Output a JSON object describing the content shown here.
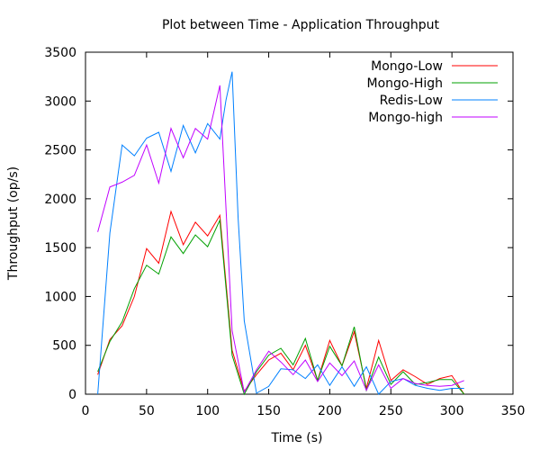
{
  "chart_data": {
    "type": "line",
    "title": "Plot between Time - Application Throughput",
    "xlabel": "Time (s)",
    "ylabel": "Throughput (op/s)",
    "xlim": [
      0,
      350
    ],
    "ylim": [
      0,
      3500
    ],
    "xticks": [
      0,
      50,
      100,
      150,
      200,
      250,
      300,
      350
    ],
    "yticks": [
      0,
      500,
      1000,
      1500,
      2000,
      2500,
      3000,
      3500
    ],
    "grid": false,
    "legend_position": "top-right",
    "series": [
      {
        "name": "Mongo-Low",
        "color": "#ff0000",
        "x": [
          10,
          20,
          30,
          40,
          50,
          60,
          70,
          80,
          90,
          100,
          110,
          120,
          130,
          140,
          150,
          160,
          170,
          180,
          190,
          200,
          210,
          220,
          230,
          240,
          250,
          260,
          270,
          280,
          290,
          300,
          310
        ],
        "y": [
          200,
          560,
          700,
          1000,
          1490,
          1340,
          1870,
          1530,
          1760,
          1620,
          1830,
          450,
          30,
          200,
          350,
          420,
          250,
          500,
          140,
          550,
          290,
          640,
          60,
          550,
          140,
          250,
          180,
          100,
          160,
          190,
          0
        ]
      },
      {
        "name": "Mongo-High",
        "color": "#00a000",
        "x": [
          10,
          20,
          30,
          40,
          50,
          60,
          70,
          80,
          90,
          100,
          110,
          120,
          130,
          140,
          150,
          160,
          170,
          180,
          190,
          200,
          210,
          220,
          230,
          240,
          250,
          260,
          270,
          280,
          290,
          300,
          310
        ],
        "y": [
          230,
          540,
          740,
          1080,
          1320,
          1230,
          1610,
          1440,
          1630,
          1510,
          1780,
          400,
          0,
          230,
          400,
          470,
          300,
          570,
          140,
          490,
          290,
          690,
          40,
          380,
          100,
          230,
          100,
          120,
          150,
          150,
          0
        ]
      },
      {
        "name": "Redis-Low",
        "color": "#0080ff",
        "x": [
          10,
          20,
          30,
          40,
          50,
          60,
          70,
          80,
          90,
          100,
          110,
          115,
          120,
          125,
          130,
          140,
          150,
          160,
          170,
          180,
          190,
          200,
          210,
          220,
          230,
          240,
          250,
          260,
          270,
          280,
          290,
          300,
          310
        ],
        "y": [
          0,
          1650,
          2550,
          2440,
          2620,
          2680,
          2280,
          2750,
          2470,
          2770,
          2610,
          3010,
          3300,
          1800,
          750,
          10,
          80,
          260,
          250,
          160,
          300,
          90,
          280,
          80,
          280,
          0,
          130,
          160,
          90,
          60,
          40,
          60,
          60
        ]
      },
      {
        "name": "Mongo-high",
        "color": "#c000ff",
        "x": [
          10,
          20,
          30,
          40,
          50,
          60,
          70,
          80,
          90,
          100,
          110,
          120,
          130,
          140,
          150,
          160,
          170,
          180,
          190,
          200,
          210,
          220,
          230,
          240,
          250,
          260,
          270,
          280,
          290,
          300,
          310
        ],
        "y": [
          1660,
          2120,
          2170,
          2240,
          2550,
          2160,
          2720,
          2420,
          2720,
          2610,
          3160,
          650,
          20,
          250,
          440,
          330,
          200,
          350,
          130,
          320,
          190,
          340,
          40,
          300,
          60,
          160,
          110,
          90,
          80,
          90,
          140
        ]
      }
    ]
  }
}
